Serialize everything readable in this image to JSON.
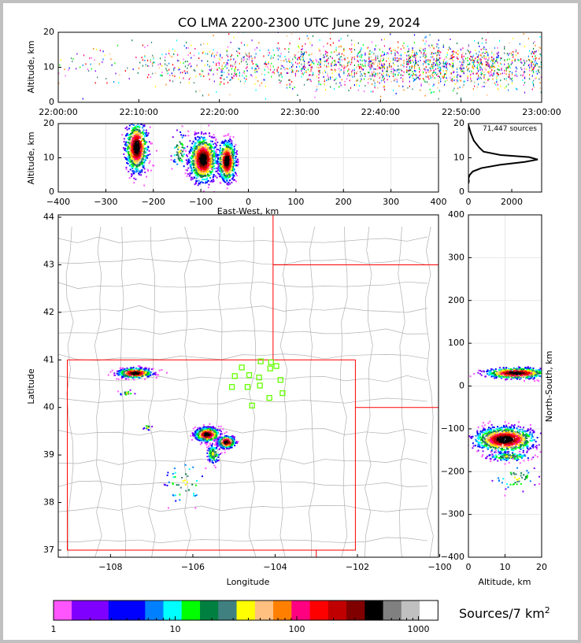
{
  "chart_data": {
    "type": "scatter",
    "title": "CO LMA 2200-2300 UTC June 29, 2024",
    "panels": {
      "time_height": {
        "ylabel": "Altitude, km",
        "ylim": [
          0,
          20
        ],
        "xlim_minutes": [
          0,
          60
        ],
        "yticks": [
          {
            "v": 0,
            "label": "0"
          },
          {
            "v": 10,
            "label": "10"
          },
          {
            "v": 20,
            "label": "20"
          }
        ],
        "xticks": [
          {
            "v": 0,
            "label": "22:00:00"
          },
          {
            "v": 10,
            "label": "22:10:00"
          },
          {
            "v": 20,
            "label": "22:20:00"
          },
          {
            "v": 30,
            "label": "22:30:00"
          },
          {
            "v": 40,
            "label": "22:40:00"
          },
          {
            "v": 50,
            "label": "22:50:00"
          },
          {
            "v": 60,
            "label": "23:00:00"
          }
        ],
        "activity_by_10min": [
          0.15,
          0.35,
          0.6,
          0.85,
          1.0,
          0.95
        ],
        "median_altitude_km": 10.5
      },
      "ew_height": {
        "xlabel": "East-West, km",
        "ylabel": "Altitude, km",
        "xlim": [
          -400,
          400
        ],
        "ylim": [
          0,
          20
        ],
        "xticks": [
          {
            "v": -400,
            "label": "−400"
          },
          {
            "v": -300,
            "label": "−300"
          },
          {
            "v": -200,
            "label": "−200"
          },
          {
            "v": -100,
            "label": "−100"
          },
          {
            "v": 0,
            "label": "0"
          },
          {
            "v": 100,
            "label": "100"
          },
          {
            "v": 200,
            "label": "200"
          },
          {
            "v": 300,
            "label": "300"
          },
          {
            "v": 400,
            "label": "400"
          }
        ],
        "yticks": [
          {
            "v": 0,
            "label": "0"
          },
          {
            "v": 10,
            "label": "10"
          },
          {
            "v": 20,
            "label": "20"
          }
        ],
        "clusters": [
          {
            "x": -235,
            "z": 13,
            "sx": 11,
            "sz": 3.5,
            "n": 800
          },
          {
            "x": -95,
            "z": 9.5,
            "sx": 14,
            "sz": 3.2,
            "n": 1000
          },
          {
            "x": -45,
            "z": 9,
            "sx": 9,
            "sz": 2.8,
            "n": 650
          },
          {
            "x": -145,
            "z": 12,
            "sx": 8,
            "sz": 3,
            "n": 60
          }
        ]
      },
      "altitude_histogram": {
        "annotation": "71,447 sources",
        "xlim": [
          0,
          3380
        ],
        "ylim": [
          0,
          20
        ],
        "xticks": [
          {
            "v": 0,
            "label": "0"
          },
          {
            "v": 2000,
            "label": "2000"
          }
        ],
        "yticks": [
          {
            "v": 0,
            "label": "0"
          },
          {
            "v": 10,
            "label": "10"
          },
          {
            "v": 20,
            "label": "20"
          }
        ],
        "profile": [
          [
            0,
            2.5
          ],
          [
            20,
            3.2
          ],
          [
            0,
            4
          ],
          [
            60,
            5
          ],
          [
            200,
            6
          ],
          [
            600,
            7
          ],
          [
            1500,
            8
          ],
          [
            2600,
            8.8
          ],
          [
            3200,
            9.5
          ],
          [
            2800,
            10.2
          ],
          [
            1500,
            10.8
          ],
          [
            700,
            11.8
          ],
          [
            500,
            13
          ],
          [
            250,
            15
          ],
          [
            120,
            17
          ],
          [
            50,
            18.5
          ],
          [
            0,
            19.5
          ],
          [
            0,
            20
          ]
        ]
      },
      "plan_view": {
        "xlabel": "Longitude",
        "ylabel": "Latitude",
        "xlim": [
          -109.27,
          -100.03
        ],
        "ylim": [
          36.85,
          44.05
        ],
        "xticks": [
          {
            "v": -108,
            "label": "−108"
          },
          {
            "v": -106,
            "label": "−106"
          },
          {
            "v": -104,
            "label": "−104"
          },
          {
            "v": -102,
            "label": "−102"
          },
          {
            "v": -100,
            "label": "−100"
          }
        ],
        "yticks": [
          {
            "v": 37,
            "label": "37"
          },
          {
            "v": 38,
            "label": "38"
          },
          {
            "v": 39,
            "label": "39"
          },
          {
            "v": 40,
            "label": "40"
          },
          {
            "v": 41,
            "label": "41"
          },
          {
            "v": 42,
            "label": "42"
          },
          {
            "v": 43,
            "label": "43"
          },
          {
            "v": 44,
            "label": "44"
          }
        ],
        "stations": [
          [
            -104.35,
            40.97
          ],
          [
            -104.1,
            40.95
          ],
          [
            -103.97,
            40.87
          ],
          [
            -104.81,
            40.84
          ],
          [
            -104.12,
            40.82
          ],
          [
            -104.98,
            40.66
          ],
          [
            -104.63,
            40.68
          ],
          [
            -104.39,
            40.63
          ],
          [
            -103.87,
            40.58
          ],
          [
            -105.05,
            40.43
          ],
          [
            -104.67,
            40.43
          ],
          [
            -104.37,
            40.46
          ],
          [
            -103.82,
            40.3
          ],
          [
            -104.14,
            40.2
          ],
          [
            -104.56,
            40.04
          ]
        ],
        "clusters": [
          {
            "x": -107.4,
            "y": 40.72,
            "sx": 0.2,
            "sy": 0.05,
            "n": 600
          },
          {
            "x": -105.65,
            "y": 39.43,
            "sx": 0.14,
            "sy": 0.07,
            "n": 700
          },
          {
            "x": -105.18,
            "y": 39.27,
            "sx": 0.1,
            "sy": 0.06,
            "n": 550
          },
          {
            "x": -105.5,
            "y": 39.02,
            "sx": 0.08,
            "sy": 0.1,
            "n": 120
          },
          {
            "x": -106.2,
            "y": 38.4,
            "sx": 0.25,
            "sy": 0.25,
            "n": 45
          },
          {
            "x": -107.6,
            "y": 40.3,
            "sx": 0.1,
            "sy": 0.03,
            "n": 20
          },
          {
            "x": -107.1,
            "y": 39.58,
            "sx": 0.05,
            "sy": 0.03,
            "n": 12
          }
        ]
      },
      "ns_height": {
        "xlabel": "Altitude, km",
        "ylabel": "North-South, km",
        "xlim": [
          0,
          20
        ],
        "ylim": [
          -400,
          400
        ],
        "xticks": [
          {
            "v": 0,
            "label": "0"
          },
          {
            "v": 10,
            "label": "10"
          },
          {
            "v": 20,
            "label": "20"
          }
        ],
        "yticks": [
          {
            "v": -400,
            "label": "−400"
          },
          {
            "v": -300,
            "label": "−300"
          },
          {
            "v": -200,
            "label": "−200"
          },
          {
            "v": -100,
            "label": "−100"
          },
          {
            "v": 0,
            "label": "0"
          },
          {
            "v": 100,
            "label": "100"
          },
          {
            "v": 200,
            "label": "200"
          },
          {
            "v": 300,
            "label": "300"
          },
          {
            "v": 400,
            "label": "400"
          }
        ],
        "clusters": [
          {
            "x": 13,
            "y": 30,
            "sx": 4,
            "sy": 6,
            "n": 600
          },
          {
            "x": 10,
            "y": -125,
            "sx": 4,
            "sy": 14,
            "n": 1100
          },
          {
            "x": 11,
            "y": -165,
            "sx": 3,
            "sy": 5,
            "n": 150
          },
          {
            "x": 13,
            "y": -215,
            "sx": 3,
            "sy": 15,
            "n": 50
          }
        ]
      }
    },
    "colorbar": {
      "label": "Sources/7 km",
      "label_sup": "2",
      "scale": "log",
      "bin_edges": [
        1,
        1.41,
        2.83,
        5.66,
        8,
        11.3,
        16,
        22.6,
        32,
        45.3,
        64,
        90.5,
        128,
        181,
        256,
        362,
        512,
        724,
        1024,
        1448
      ],
      "colors": [
        "#ff55ff",
        "#8000ff",
        "#0000ff",
        "#0080ff",
        "#00ffff",
        "#00ff00",
        "#008040",
        "#408080",
        "#ffff00",
        "#ffc080",
        "#ff8000",
        "#ff0080",
        "#ff0000",
        "#c00000",
        "#800000",
        "#000000",
        "#808080",
        "#c0c0c0",
        "#ffffff"
      ],
      "ticks": [
        {
          "v": 1,
          "label": "1"
        },
        {
          "v": 10,
          "label": "10"
        },
        {
          "v": 100,
          "label": "100"
        },
        {
          "v": 1000,
          "label": "1000"
        }
      ]
    },
    "colors": {
      "state_border": "#ff0000",
      "county_line": "#b0b0b0",
      "station": "#66ff00",
      "grid": "#e6e6e6"
    }
  }
}
